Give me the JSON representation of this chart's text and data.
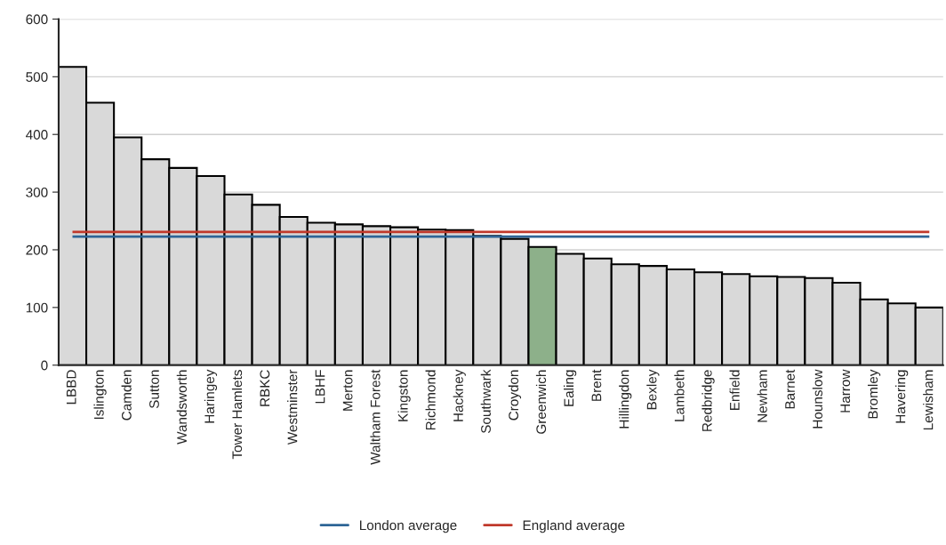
{
  "chart_data": {
    "type": "bar",
    "categories": [
      "LBBD",
      "Islington",
      "Camden",
      "Sutton",
      "Wandsworth",
      "Haringey",
      "Tower Hamlets",
      "RBKC",
      "Westminster",
      "LBHF",
      "Merton",
      "Waltham Forest",
      "Kingston",
      "Richmond",
      "Hackney",
      "Southwark",
      "Croydon",
      "Greenwich",
      "Ealing",
      "Brent",
      "Hillingdon",
      "Bexley",
      "Lambeth",
      "Redbridge",
      "Enfield",
      "Newham",
      "Barnet",
      "Hounslow",
      "Harrow",
      "Bromley",
      "Havering",
      "Lewisham"
    ],
    "values": [
      517,
      455,
      395,
      357,
      342,
      328,
      296,
      278,
      257,
      247,
      244,
      241,
      239,
      235,
      234,
      224,
      219,
      205,
      193,
      185,
      175,
      172,
      166,
      161,
      158,
      154,
      153,
      151,
      143,
      114,
      107,
      100
    ],
    "colors": [
      "#d9d9d9",
      "#d9d9d9",
      "#d9d9d9",
      "#d9d9d9",
      "#d9d9d9",
      "#d9d9d9",
      "#d9d9d9",
      "#d9d9d9",
      "#d9d9d9",
      "#d9d9d9",
      "#d9d9d9",
      "#d9d9d9",
      "#d9d9d9",
      "#d9d9d9",
      "#d9d9d9",
      "#d9d9d9",
      "#d9d9d9",
      "#8db08a",
      "#d9d9d9",
      "#d9d9d9",
      "#d9d9d9",
      "#d9d9d9",
      "#d9d9d9",
      "#d9d9d9",
      "#d9d9d9",
      "#d9d9d9",
      "#d9d9d9",
      "#d9d9d9",
      "#d9d9d9",
      "#d9d9d9",
      "#d9d9d9",
      "#d9d9d9"
    ],
    "ylim": [
      0,
      600
    ],
    "yticks": [
      0,
      100,
      200,
      300,
      400,
      500,
      600
    ],
    "ref_lines": [
      {
        "axis": "y",
        "value": 223,
        "label": "London average",
        "color": "#2e6596"
      },
      {
        "axis": "y",
        "value": 231,
        "label": "England average",
        "color": "#c0392b"
      }
    ],
    "grid": "y",
    "legend": "bottom"
  }
}
